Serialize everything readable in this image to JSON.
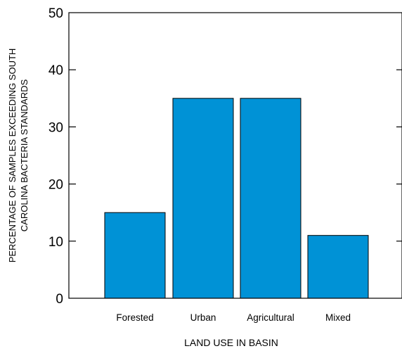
{
  "chart_data": {
    "type": "bar",
    "title": "",
    "categories": [
      "Forested",
      "Urban",
      "Agricultural",
      "Mixed"
    ],
    "values": [
      15,
      35,
      35,
      11
    ],
    "xlabel": "LAND USE IN BASIN",
    "ylabel_lines": [
      "PERCENTAGE OF SAMPLES EXCEEDING SOUTH",
      "CAROLINA BACTERIA STANDARDS"
    ],
    "ylim": [
      0,
      50
    ],
    "yticks": [
      0,
      10,
      20,
      30,
      40,
      50
    ],
    "grid": false,
    "legend": "none",
    "bar_color": "#0092d6",
    "bar_edge_color": "#000000"
  }
}
